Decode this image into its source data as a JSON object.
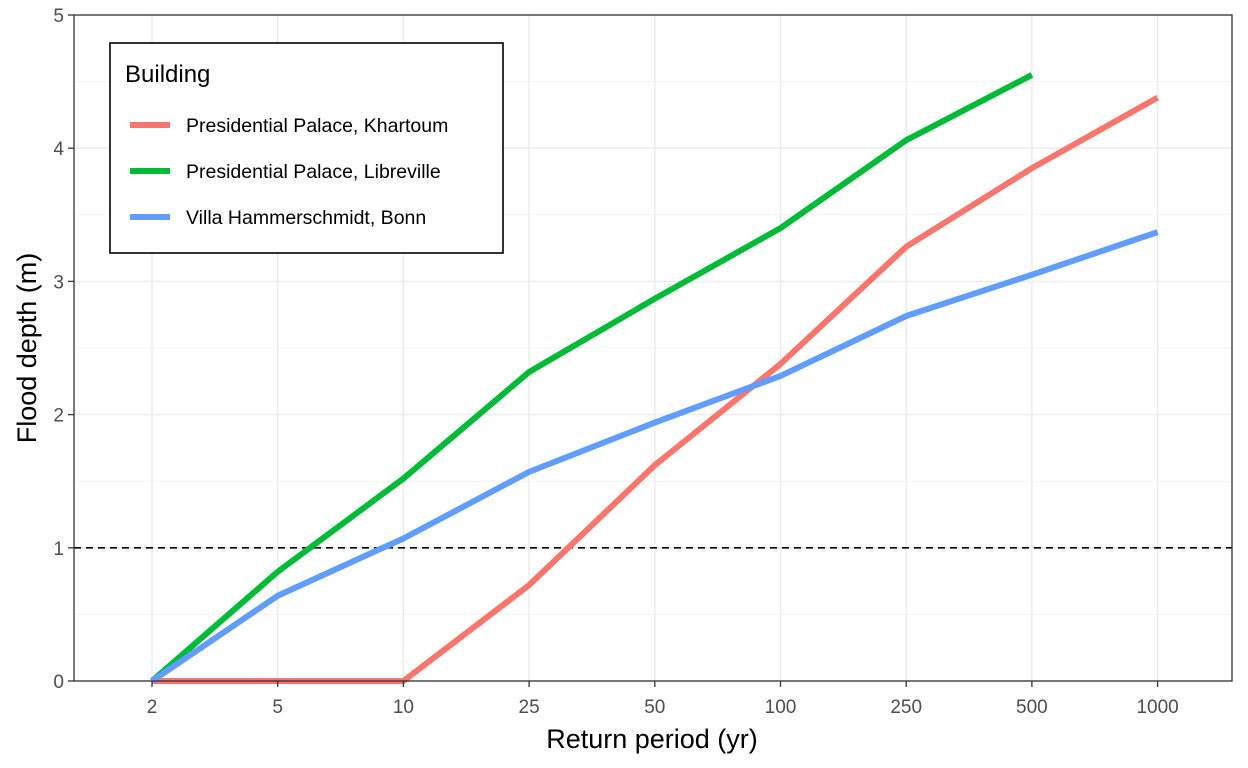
{
  "chart_data": {
    "type": "line",
    "xlabel": "Return period (yr)",
    "ylabel": "Flood depth (m)",
    "categories": [
      "2",
      "5",
      "10",
      "25",
      "50",
      "100",
      "250",
      "500",
      "1000"
    ],
    "ylim": [
      0,
      5
    ],
    "yticks": [
      0,
      1,
      2,
      3,
      4,
      5
    ],
    "grid": true,
    "reference_line": {
      "y": 1,
      "style": "dashed",
      "color": "#000000"
    },
    "legend": {
      "title": "Building",
      "position": "top-left"
    },
    "series": [
      {
        "name": "Presidential Palace, Khartoum",
        "color": "#F8766D",
        "values": [
          0,
          0,
          0,
          0.72,
          1.62,
          2.38,
          3.26,
          3.85,
          4.38
        ]
      },
      {
        "name": "Presidential Palace, Libreville",
        "color": "#00BA38",
        "values": [
          0,
          0.82,
          1.52,
          2.32,
          2.87,
          3.4,
          4.06,
          4.55,
          null
        ]
      },
      {
        "name": "Villa Hammerschmidt, Bonn",
        "color": "#619CFF",
        "values": [
          0,
          0.64,
          1.07,
          1.57,
          1.94,
          2.29,
          2.74,
          3.05,
          3.37
        ]
      }
    ]
  }
}
